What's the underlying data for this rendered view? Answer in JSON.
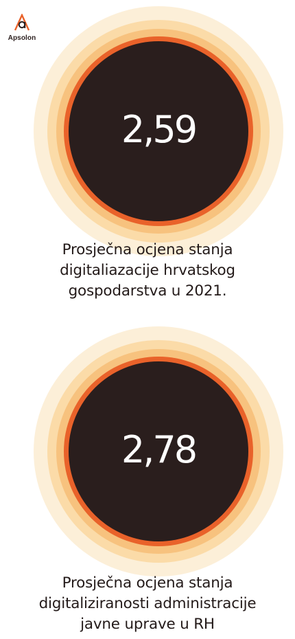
{
  "brand": {
    "name": "Apsolon",
    "logo_color": "#e9622a"
  },
  "colors": {
    "disc": "#2a1e1d",
    "ring_outer": "#fcefd8",
    "ring_mid": "#fbdba8",
    "ring_inner": "#f7c27e",
    "ring_accent": "#e9622a",
    "text": "#231a19"
  },
  "stats": [
    {
      "value": "2,59",
      "caption_lines": [
        "Prosječna ocjena stanja",
        "digitaliazacije hrvatskog",
        "gospodarstva u 2021."
      ]
    },
    {
      "value": "2,78",
      "caption_lines": [
        "Prosječna ocjena stanja",
        "digitaliziranosti administracije",
        "javne uprave u RH"
      ]
    }
  ]
}
